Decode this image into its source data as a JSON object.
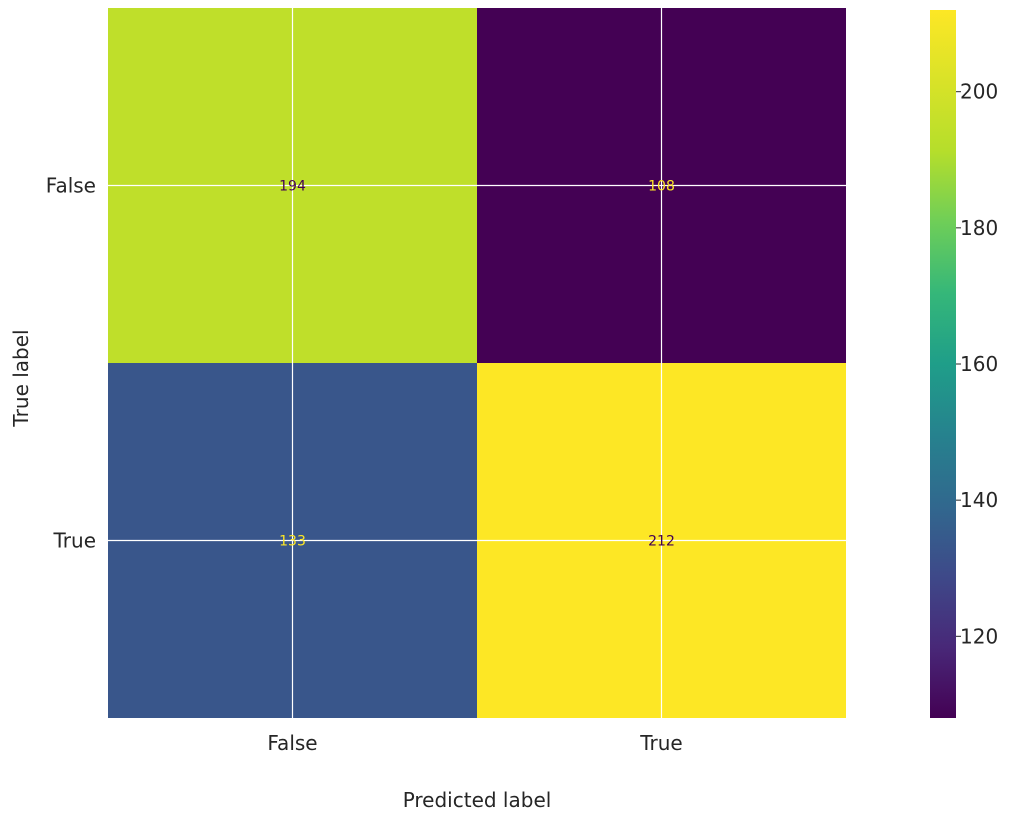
{
  "chart_data": {
    "type": "heatmap",
    "title": "",
    "xlabel": "Predicted label",
    "ylabel": "True label",
    "x_categories": [
      "False",
      "True"
    ],
    "y_categories": [
      "False",
      "True"
    ],
    "values": [
      [
        194,
        108
      ],
      [
        133,
        212
      ]
    ],
    "colormap": "viridis",
    "colorbar": {
      "min": 108,
      "max": 212,
      "ticks": [
        120,
        140,
        160,
        180,
        200
      ]
    },
    "grid": true,
    "label_colors": {
      "on_light": "#440154",
      "on_dark": "#fde725"
    }
  }
}
